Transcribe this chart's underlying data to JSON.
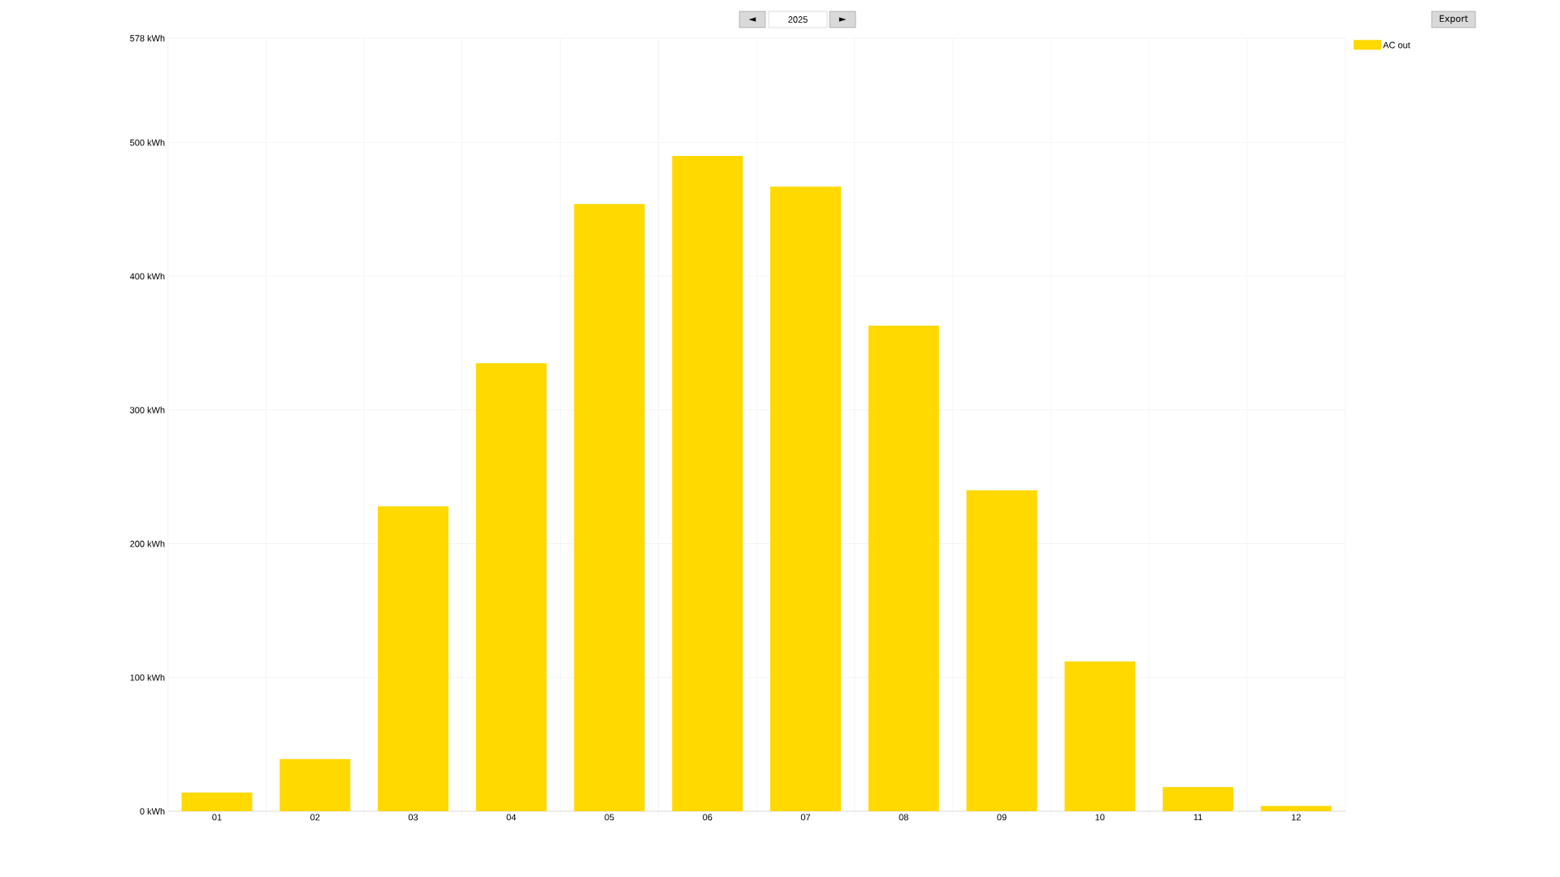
{
  "chart_data": {
    "type": "bar",
    "title": "2025",
    "categories": [
      "01",
      "02",
      "03",
      "04",
      "05",
      "06",
      "07",
      "08",
      "09",
      "10",
      "11",
      "12"
    ],
    "series": [
      {
        "name": "AC out",
        "color": "#ffd900",
        "values": [
          14,
          39,
          228,
          335,
          454,
          490,
          467,
          363,
          240,
          112,
          18,
          4
        ]
      }
    ],
    "ylim": [
      0,
      578
    ],
    "yticks": [
      {
        "value": 0,
        "label": "0 kWh"
      },
      {
        "value": 100,
        "label": "100 kWh"
      },
      {
        "value": 200,
        "label": "200 kWh"
      },
      {
        "value": 300,
        "label": "300 kWh"
      },
      {
        "value": 400,
        "label": "400 kWh"
      },
      {
        "value": 500,
        "label": "500 kWh"
      },
      {
        "value": 578,
        "label": "578 kWh"
      }
    ],
    "grid": true,
    "legend": "top right",
    "annotations": [
      "◄",
      "►",
      "Export"
    ]
  }
}
